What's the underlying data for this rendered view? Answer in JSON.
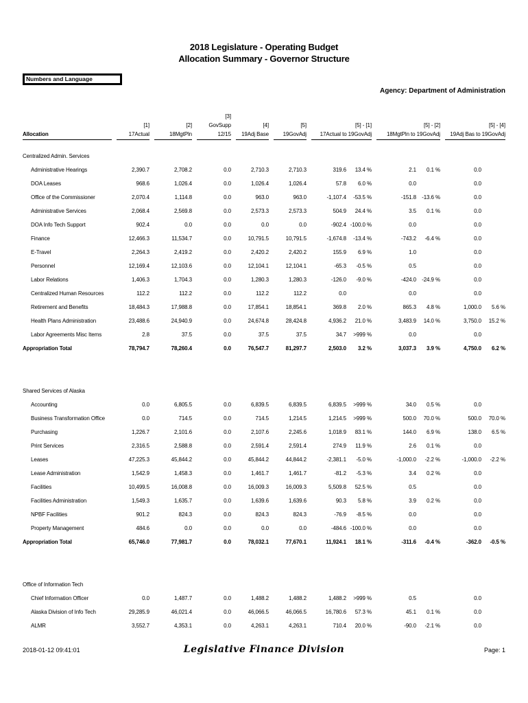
{
  "page": {
    "title_line1": "2018 Legislature - Operating Budget",
    "title_line2": "Allocation Summary - Governor Structure",
    "tab_label": "Numbers and Language",
    "agency_label": "Agency: Department of Administration",
    "footer": {
      "timestamp": "2018-01-12 09:41:01",
      "center_text": "Legislative Finance Division",
      "page_label": "Page: 1"
    }
  },
  "table": {
    "allocation_header": "Allocation",
    "columns": [
      {
        "tag": "[1]",
        "label": "17Actual",
        "span": 1
      },
      {
        "tag": "[2]",
        "label": "18MgtPln",
        "span": 1
      },
      {
        "tag": "[3]",
        "label": "GovSupp 12/15",
        "span": 1
      },
      {
        "tag": "[4]",
        "label": "19Adj Base",
        "span": 1
      },
      {
        "tag": "[5]",
        "label": "19GovAdj",
        "span": 1
      },
      {
        "tag": "[5] - [1]",
        "label": "17Actual to 19GovAdj",
        "span": 2
      },
      {
        "tag": "[5] - [2]",
        "label": "18MgtPln to 19GovAdj",
        "span": 2
      },
      {
        "tag": "[5] - [4]",
        "label": "19Adj Bas to 19GovAdj",
        "span": 2
      }
    ],
    "sections": [
      {
        "name": "Centralized Admin. Services",
        "rows": [
          {
            "label": "Administrative Hearings",
            "values": [
              "2,390.7",
              "2,708.2",
              "0.0",
              "2,710.3",
              "2,710.3",
              "319.6",
              "13.4 %",
              "2.1",
              "0.1 %",
              "0.0",
              ""
            ]
          },
          {
            "label": "DOA Leases",
            "values": [
              "968.6",
              "1,026.4",
              "0.0",
              "1,026.4",
              "1,026.4",
              "57.8",
              "6.0 %",
              "0.0",
              "",
              "0.0",
              ""
            ]
          },
          {
            "label": "Office of the Commissioner",
            "values": [
              "2,070.4",
              "1,114.8",
              "0.0",
              "963.0",
              "963.0",
              "-1,107.4",
              "-53.5 %",
              "-151.8",
              "-13.6 %",
              "0.0",
              ""
            ]
          },
          {
            "label": "Administrative Services",
            "values": [
              "2,068.4",
              "2,569.8",
              "0.0",
              "2,573.3",
              "2,573.3",
              "504.9",
              "24.4 %",
              "3.5",
              "0.1 %",
              "0.0",
              ""
            ]
          },
          {
            "label": "DOA Info Tech Support",
            "values": [
              "902.4",
              "0.0",
              "0.0",
              "0.0",
              "0.0",
              "-902.4",
              "-100.0 %",
              "0.0",
              "",
              "0.0",
              ""
            ]
          },
          {
            "label": "Finance",
            "values": [
              "12,466.3",
              "11,534.7",
              "0.0",
              "10,791.5",
              "10,791.5",
              "-1,674.8",
              "-13.4 %",
              "-743.2",
              "-6.4 %",
              "0.0",
              ""
            ]
          },
          {
            "label": "E-Travel",
            "values": [
              "2,264.3",
              "2,419.2",
              "0.0",
              "2,420.2",
              "2,420.2",
              "155.9",
              "6.9 %",
              "1.0",
              "",
              "0.0",
              ""
            ]
          },
          {
            "label": "Personnel",
            "values": [
              "12,169.4",
              "12,103.6",
              "0.0",
              "12,104.1",
              "12,104.1",
              "-65.3",
              "-0.5 %",
              "0.5",
              "",
              "0.0",
              ""
            ]
          },
          {
            "label": "Labor Relations",
            "values": [
              "1,406.3",
              "1,704.3",
              "0.0",
              "1,280.3",
              "1,280.3",
              "-126.0",
              "-9.0 %",
              "-424.0",
              "-24.9 %",
              "0.0",
              ""
            ]
          },
          {
            "label": "Centralized Human Resources",
            "values": [
              "112.2",
              "112.2",
              "0.0",
              "112.2",
              "112.2",
              "0.0",
              "",
              "0.0",
              "",
              "0.0",
              ""
            ]
          },
          {
            "label": "Retirement and Benefits",
            "values": [
              "18,484.3",
              "17,988.8",
              "0.0",
              "17,854.1",
              "18,854.1",
              "369.8",
              "2.0 %",
              "865.3",
              "4.8 %",
              "1,000.0",
              "5.6 %"
            ]
          },
          {
            "label": "Health Plans Administration",
            "values": [
              "23,488.6",
              "24,940.9",
              "0.0",
              "24,674.8",
              "28,424.8",
              "4,936.2",
              "21.0 %",
              "3,483.9",
              "14.0 %",
              "3,750.0",
              "15.2 %"
            ]
          },
          {
            "label": "Labor Agreements Misc Items",
            "values": [
              "2.8",
              "37.5",
              "0.0",
              "37.5",
              "37.5",
              "34.7",
              ">999 %",
              "0.0",
              "",
              "0.0",
              ""
            ]
          }
        ],
        "total": {
          "label": "Appropriation Total",
          "values": [
            "78,794.7",
            "78,260.4",
            "0.0",
            "76,547.7",
            "81,297.7",
            "2,503.0",
            "3.2 %",
            "3,037.3",
            "3.9 %",
            "4,750.0",
            "6.2 %"
          ]
        }
      },
      {
        "name": "Shared Services of Alaska",
        "rows": [
          {
            "label": "Accounting",
            "values": [
              "0.0",
              "6,805.5",
              "0.0",
              "6,839.5",
              "6,839.5",
              "6,839.5",
              ">999 %",
              "34.0",
              "0.5 %",
              "0.0",
              ""
            ]
          },
          {
            "label": "Business Transformation Office",
            "values": [
              "0.0",
              "714.5",
              "0.0",
              "714.5",
              "1,214.5",
              "1,214.5",
              ">999 %",
              "500.0",
              "70.0 %",
              "500.0",
              "70.0 %"
            ]
          },
          {
            "label": "Purchasing",
            "values": [
              "1,226.7",
              "2,101.6",
              "0.0",
              "2,107.6",
              "2,245.6",
              "1,018.9",
              "83.1 %",
              "144.0",
              "6.9 %",
              "138.0",
              "6.5 %"
            ]
          },
          {
            "label": "Print Services",
            "values": [
              "2,316.5",
              "2,588.8",
              "0.0",
              "2,591.4",
              "2,591.4",
              "274.9",
              "11.9 %",
              "2.6",
              "0.1 %",
              "0.0",
              ""
            ]
          },
          {
            "label": "Leases",
            "values": [
              "47,225.3",
              "45,844.2",
              "0.0",
              "45,844.2",
              "44,844.2",
              "-2,381.1",
              "-5.0 %",
              "-1,000.0",
              "-2.2 %",
              "-1,000.0",
              "-2.2 %"
            ]
          },
          {
            "label": "Lease Administration",
            "values": [
              "1,542.9",
              "1,458.3",
              "0.0",
              "1,461.7",
              "1,461.7",
              "-81.2",
              "-5.3 %",
              "3.4",
              "0.2 %",
              "0.0",
              ""
            ]
          },
          {
            "label": "Facilities",
            "values": [
              "10,499.5",
              "16,008.8",
              "0.0",
              "16,009.3",
              "16,009.3",
              "5,509.8",
              "52.5 %",
              "0.5",
              "",
              "0.0",
              ""
            ]
          },
          {
            "label": "Facilities Administration",
            "values": [
              "1,549.3",
              "1,635.7",
              "0.0",
              "1,639.6",
              "1,639.6",
              "90.3",
              "5.8 %",
              "3.9",
              "0.2 %",
              "0.0",
              ""
            ]
          },
          {
            "label": "NPBF Facilities",
            "values": [
              "901.2",
              "824.3",
              "0.0",
              "824.3",
              "824.3",
              "-76.9",
              "-8.5 %",
              "0.0",
              "",
              "0.0",
              ""
            ]
          },
          {
            "label": "Property Management",
            "values": [
              "484.6",
              "0.0",
              "0.0",
              "0.0",
              "0.0",
              "-484.6",
              "-100.0 %",
              "0.0",
              "",
              "0.0",
              ""
            ]
          }
        ],
        "total": {
          "label": "Appropriation Total",
          "values": [
            "65,746.0",
            "77,981.7",
            "0.0",
            "78,032.1",
            "77,670.1",
            "11,924.1",
            "18.1 %",
            "-311.6",
            "-0.4 %",
            "-362.0",
            "-0.5 %"
          ]
        }
      },
      {
        "name": "Office of Information Tech",
        "rows": [
          {
            "label": "Chief Information Officer",
            "values": [
              "0.0",
              "1,487.7",
              "0.0",
              "1,488.2",
              "1,488.2",
              "1,488.2",
              ">999 %",
              "0.5",
              "",
              "0.0",
              ""
            ]
          },
          {
            "label": "Alaska Division of Info Tech",
            "values": [
              "29,285.9",
              "46,021.4",
              "0.0",
              "46,066.5",
              "46,066.5",
              "16,780.6",
              "57.3 %",
              "45.1",
              "0.1 %",
              "0.0",
              ""
            ]
          },
          {
            "label": "ALMR",
            "values": [
              "3,552.7",
              "4,353.1",
              "0.0",
              "4,263.1",
              "4,263.1",
              "710.4",
              "20.0 %",
              "-90.0",
              "-2.1 %",
              "0.0",
              ""
            ]
          }
        ],
        "total": null
      }
    ]
  }
}
